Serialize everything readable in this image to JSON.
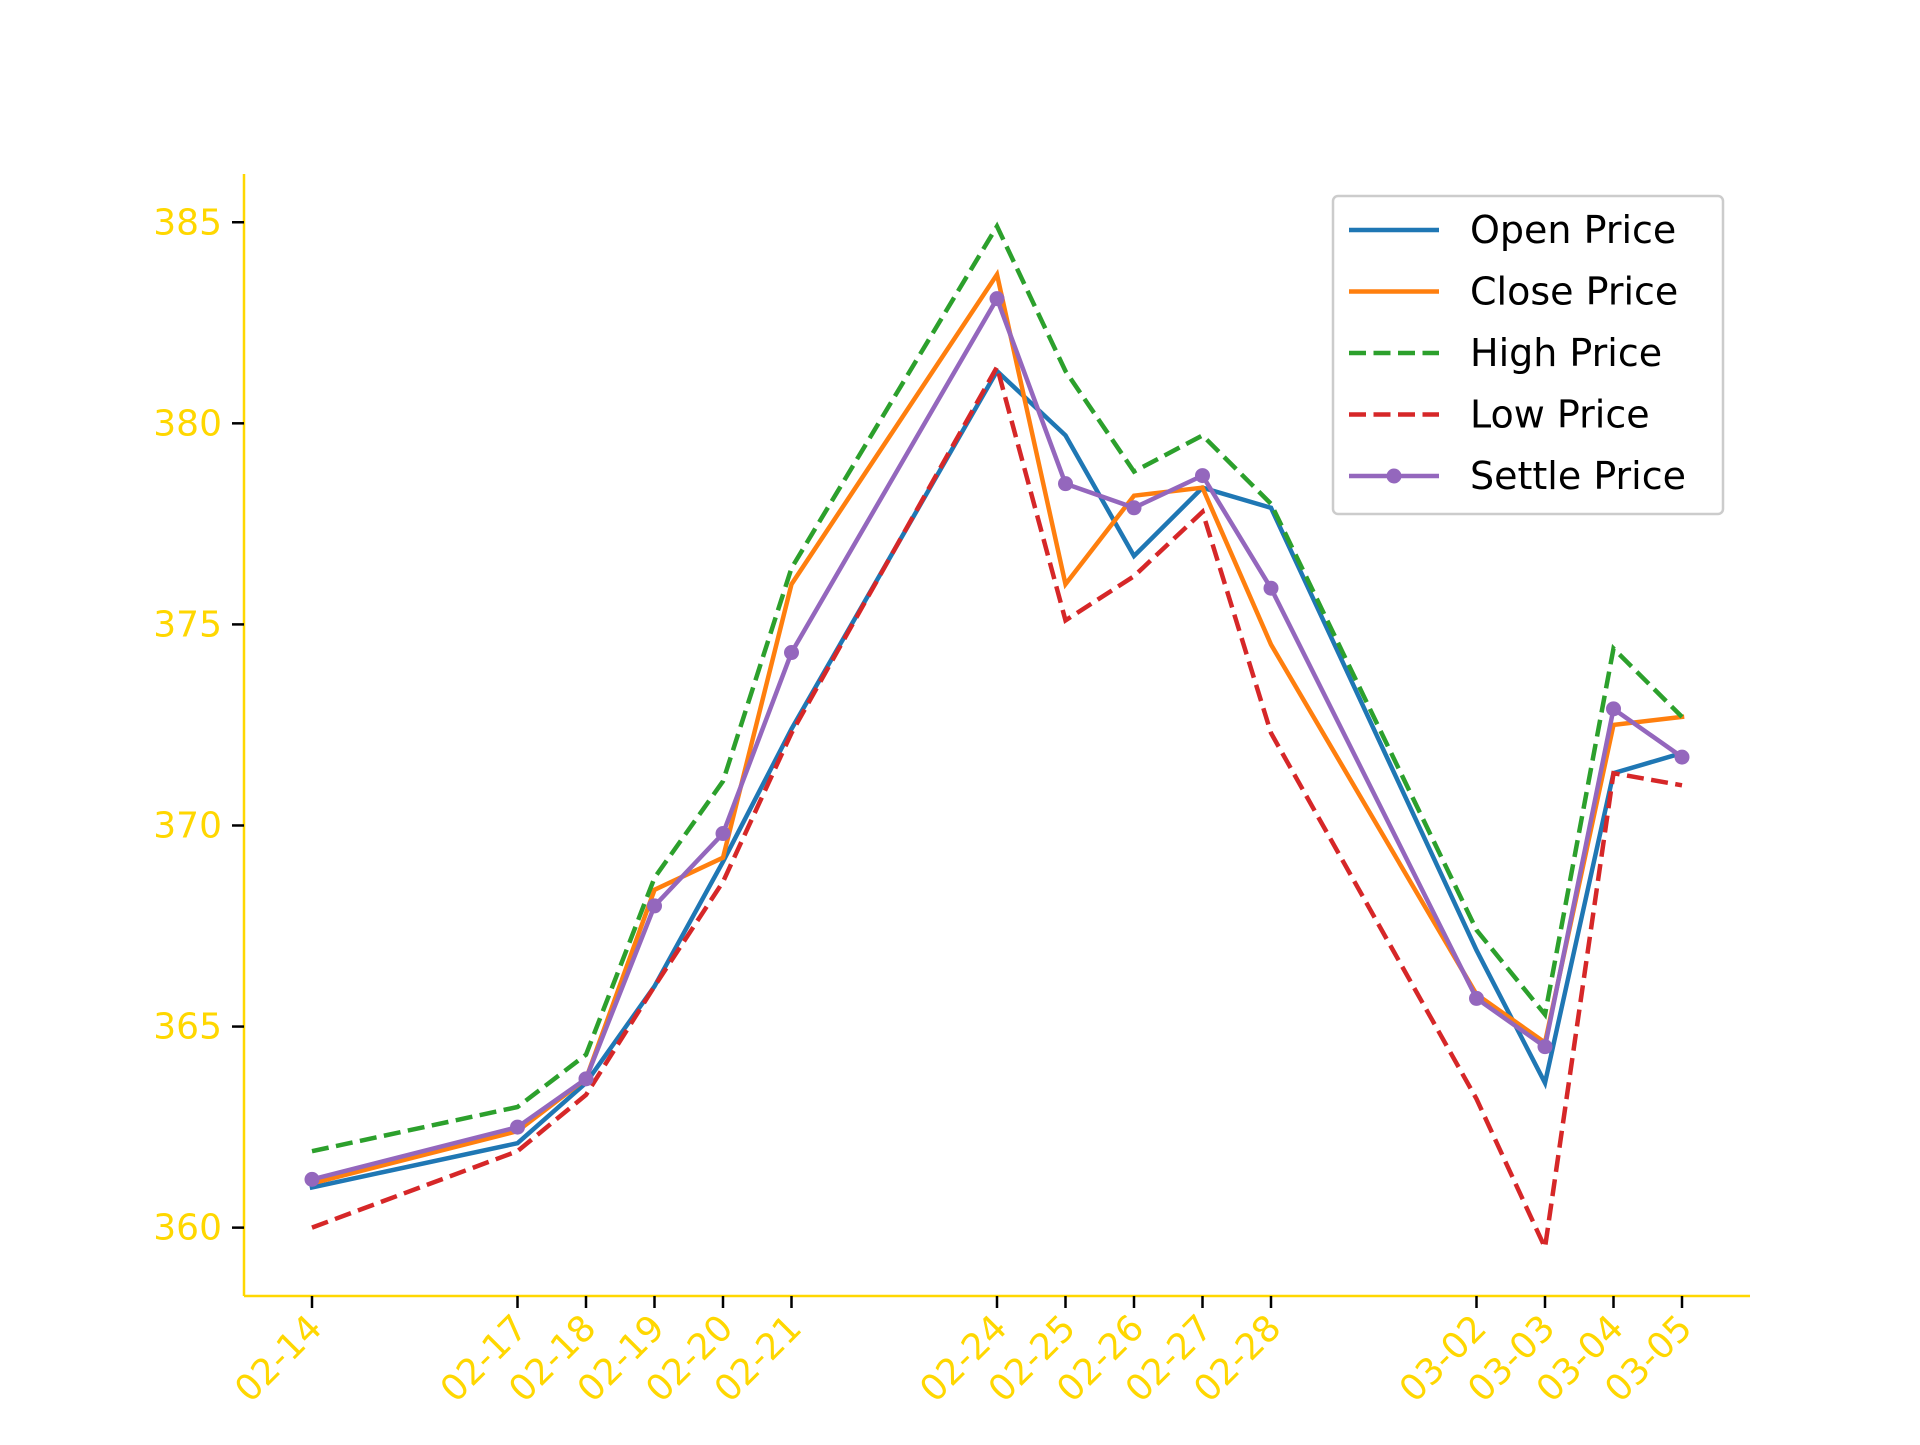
{
  "chart_data": {
    "type": "line",
    "title": "",
    "xlabel": "",
    "ylabel": "",
    "x": [
      "02-14",
      "02-17",
      "02-18",
      "02-19",
      "02-20",
      "02-21",
      "02-24",
      "02-25",
      "02-26",
      "02-27",
      "02-28",
      "03-02",
      "03-03",
      "03-04",
      "03-05"
    ],
    "x_day_index": [
      0,
      3,
      4,
      5,
      6,
      7,
      10,
      11,
      12,
      13,
      14,
      17,
      18,
      19,
      20
    ],
    "ylim": [
      358.3,
      386.2
    ],
    "yticks": [
      360,
      365,
      370,
      375,
      380,
      385
    ],
    "grid": false,
    "legend_position": "top-right",
    "axis_color": "#FFD700",
    "series": [
      {
        "name": "Open Price",
        "color": "#1f77b4",
        "style": "solid",
        "marker": false,
        "values": [
          361.0,
          362.1,
          363.6,
          366.0,
          369.1,
          372.4,
          381.3,
          379.7,
          376.7,
          378.4,
          377.9,
          366.9,
          363.6,
          371.3,
          371.8
        ]
      },
      {
        "name": "Close Price",
        "color": "#ff7f0e",
        "style": "solid",
        "marker": false,
        "values": [
          361.1,
          362.4,
          363.7,
          368.4,
          369.2,
          376.0,
          383.7,
          376.0,
          378.2,
          378.4,
          374.5,
          365.8,
          364.6,
          372.5,
          372.7
        ]
      },
      {
        "name": "High Price",
        "color": "#2ca02c",
        "style": "dashed",
        "marker": false,
        "values": [
          361.9,
          363.0,
          364.3,
          368.7,
          371.1,
          376.4,
          384.9,
          381.3,
          378.8,
          379.7,
          378.0,
          367.4,
          365.3,
          374.4,
          372.7
        ]
      },
      {
        "name": "Low Price",
        "color": "#d62728",
        "style": "dashed",
        "marker": false,
        "values": [
          360.0,
          361.9,
          363.3,
          366.0,
          368.6,
          372.3,
          381.4,
          375.1,
          376.2,
          377.8,
          372.3,
          363.2,
          359.5,
          371.3,
          371.0
        ]
      },
      {
        "name": "Settle Price",
        "color": "#9467bd",
        "style": "solid",
        "marker": true,
        "values": [
          361.2,
          362.5,
          363.7,
          368.0,
          369.8,
          374.3,
          383.1,
          378.5,
          377.9,
          378.7,
          375.9,
          365.7,
          364.5,
          372.9,
          371.7
        ]
      }
    ]
  }
}
